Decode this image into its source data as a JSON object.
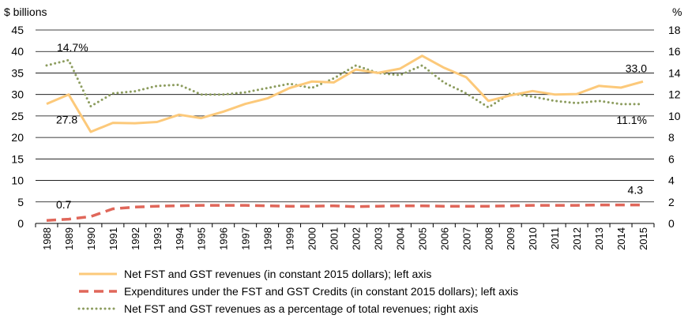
{
  "chart_data": {
    "type": "line",
    "left_unit": "$ billions",
    "right_unit": "%",
    "ylim_left": [
      0,
      45
    ],
    "yticks_left": [
      0,
      5,
      10,
      15,
      20,
      25,
      30,
      35,
      40,
      45
    ],
    "ylim_right": [
      0,
      18
    ],
    "yticks_right": [
      0,
      2,
      4,
      6,
      8,
      10,
      12,
      14,
      16,
      18
    ],
    "categories": [
      "1988",
      "1989",
      "1990",
      "1991",
      "1992",
      "1993",
      "1994",
      "1995",
      "1996",
      "1997",
      "1998",
      "1999",
      "2000",
      "2001",
      "2002",
      "2003",
      "2004",
      "2005",
      "2006",
      "2007",
      "2008",
      "2009",
      "2010",
      "2011",
      "2012",
      "2013",
      "2014",
      "2015"
    ],
    "series": [
      {
        "name": "Net FST and GST revenues (in constant 2015 dollars); left axis",
        "axis": "left",
        "color": "#fcc97a",
        "style": "solid",
        "values": [
          27.8,
          30.0,
          21.3,
          23.4,
          23.3,
          23.6,
          25.3,
          24.5,
          26.0,
          27.8,
          29.1,
          31.5,
          33.0,
          32.8,
          35.8,
          35.0,
          36.0,
          39.0,
          36.2,
          34.0,
          28.5,
          29.8,
          30.8,
          30.0,
          30.1,
          32.0,
          31.6,
          33.0
        ]
      },
      {
        "name": "Expenditures under the FST and GST Credits (in constant 2015 dollars); left axis",
        "axis": "left",
        "color": "#e0675a",
        "style": "dashed",
        "values": [
          0.7,
          1.0,
          1.6,
          3.4,
          3.8,
          4.0,
          4.1,
          4.2,
          4.2,
          4.2,
          4.1,
          4.0,
          4.0,
          4.1,
          3.9,
          4.0,
          4.1,
          4.1,
          4.0,
          4.0,
          4.0,
          4.1,
          4.2,
          4.2,
          4.2,
          4.3,
          4.3,
          4.3
        ]
      },
      {
        "name": "Net FST and GST revenues as a percentage of total revenues; right axis",
        "axis": "right",
        "color": "#8c9c5e",
        "style": "dotted",
        "values": [
          14.7,
          15.2,
          10.9,
          12.1,
          12.3,
          12.8,
          12.9,
          12.0,
          12.0,
          12.2,
          12.6,
          13.0,
          12.6,
          13.5,
          14.7,
          14.0,
          13.8,
          14.7,
          13.1,
          12.1,
          10.8,
          12.1,
          11.8,
          11.4,
          11.2,
          11.4,
          11.1,
          11.1
        ]
      }
    ],
    "annotations": [
      {
        "text": "14.7%",
        "series": 2,
        "index": 0
      },
      {
        "text": "27.8",
        "series": 0,
        "index": 0
      },
      {
        "text": "0.7",
        "series": 1,
        "index": 0
      },
      {
        "text": "33.0",
        "series": 0,
        "index": 27
      },
      {
        "text": "11.1%",
        "series": 2,
        "index": 27
      },
      {
        "text": "4.3",
        "series": 1,
        "index": 27
      }
    ],
    "grid": true,
    "legend_position": "bottom"
  }
}
